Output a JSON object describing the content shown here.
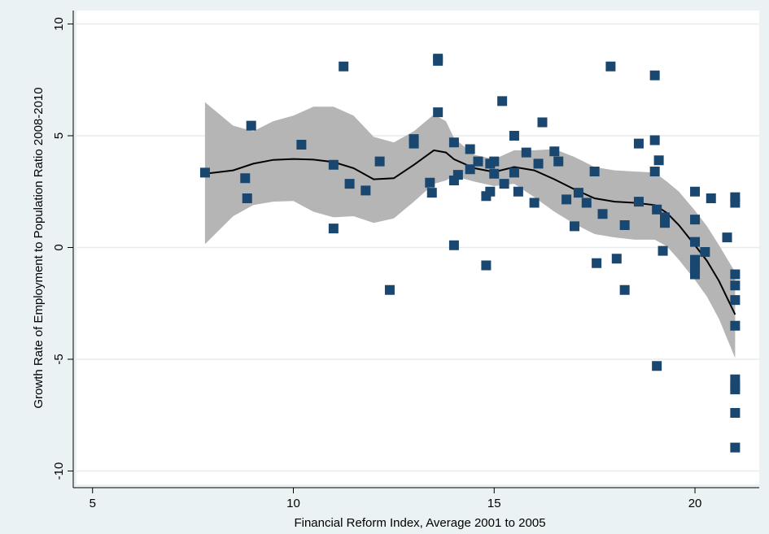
{
  "chart_data": {
    "type": "scatter",
    "title": "",
    "xlabel": "Financial Reform Index, Average 2001 to 2005",
    "ylabel": "Growth Rate of Employment to Population Ratio 2008-2010",
    "xlim": [
      4.6,
      21.6
    ],
    "ylim": [
      -10.6,
      10.6
    ],
    "xticks": [
      5,
      10,
      15,
      20
    ],
    "yticks": [
      -10,
      -5,
      0,
      5,
      10
    ],
    "grid": true,
    "legend": "none",
    "colors": {
      "background": "#eaf2f3",
      "plot_area": "#ffffff",
      "marker": "#1a476f",
      "band": "#b5b5b5",
      "line": "#000000"
    },
    "points": [
      [
        7.8,
        3.35
      ],
      [
        8.8,
        3.1
      ],
      [
        8.85,
        2.2
      ],
      [
        8.95,
        5.45
      ],
      [
        10.2,
        4.6
      ],
      [
        11.0,
        3.7
      ],
      [
        11.0,
        0.85
      ],
      [
        11.25,
        8.1
      ],
      [
        11.4,
        2.85
      ],
      [
        11.8,
        2.55
      ],
      [
        12.15,
        3.85
      ],
      [
        12.4,
        -1.9
      ],
      [
        13.0,
        4.85
      ],
      [
        13.0,
        4.65
      ],
      [
        13.4,
        2.9
      ],
      [
        13.45,
        2.45
      ],
      [
        13.6,
        8.45
      ],
      [
        13.6,
        8.35
      ],
      [
        13.6,
        6.05
      ],
      [
        14.0,
        4.7
      ],
      [
        14.0,
        3.0
      ],
      [
        14.0,
        0.1
      ],
      [
        14.1,
        3.25
      ],
      [
        14.4,
        4.4
      ],
      [
        14.4,
        3.5
      ],
      [
        14.6,
        3.85
      ],
      [
        14.8,
        2.3
      ],
      [
        14.8,
        -0.8
      ],
      [
        14.9,
        3.75
      ],
      [
        14.9,
        2.5
      ],
      [
        15.0,
        3.85
      ],
      [
        15.0,
        3.3
      ],
      [
        15.2,
        6.55
      ],
      [
        15.25,
        2.85
      ],
      [
        15.5,
        5.0
      ],
      [
        15.5,
        3.35
      ],
      [
        15.6,
        2.5
      ],
      [
        15.8,
        4.25
      ],
      [
        16.0,
        2.0
      ],
      [
        16.1,
        3.75
      ],
      [
        16.2,
        5.6
      ],
      [
        16.5,
        4.3
      ],
      [
        16.6,
        3.85
      ],
      [
        16.8,
        2.15
      ],
      [
        17.0,
        0.95
      ],
      [
        17.1,
        2.45
      ],
      [
        17.3,
        2.0
      ],
      [
        17.5,
        3.4
      ],
      [
        17.55,
        -0.7
      ],
      [
        17.7,
        1.5
      ],
      [
        17.9,
        8.1
      ],
      [
        18.05,
        -0.5
      ],
      [
        18.25,
        1.0
      ],
      [
        18.25,
        -1.9
      ],
      [
        18.6,
        4.65
      ],
      [
        18.6,
        2.05
      ],
      [
        19.0,
        7.7
      ],
      [
        19.0,
        4.8
      ],
      [
        19.0,
        3.4
      ],
      [
        19.05,
        1.7
      ],
      [
        19.05,
        -5.3
      ],
      [
        19.1,
        3.9
      ],
      [
        19.2,
        -0.15
      ],
      [
        19.25,
        1.35
      ],
      [
        19.25,
        1.1
      ],
      [
        20.0,
        2.5
      ],
      [
        20.0,
        1.25
      ],
      [
        20.0,
        0.25
      ],
      [
        20.0,
        -0.55
      ],
      [
        20.0,
        -0.8
      ],
      [
        20.0,
        -1.0
      ],
      [
        20.0,
        -1.2
      ],
      [
        20.25,
        -0.2
      ],
      [
        20.4,
        2.2
      ],
      [
        20.8,
        0.45
      ],
      [
        21.0,
        2.25
      ],
      [
        21.0,
        2.0
      ],
      [
        21.0,
        -1.2
      ],
      [
        21.0,
        -1.7
      ],
      [
        21.0,
        -2.35
      ],
      [
        21.0,
        -3.5
      ],
      [
        21.0,
        -5.9
      ],
      [
        21.0,
        -6.2
      ],
      [
        21.0,
        -6.35
      ],
      [
        21.0,
        -7.4
      ],
      [
        21.0,
        -8.95
      ]
    ],
    "fit": {
      "x": [
        7.8,
        8.5,
        9.0,
        9.5,
        10.0,
        10.5,
        11.0,
        11.5,
        12.0,
        12.5,
        13.0,
        13.5,
        13.8,
        14.0,
        14.5,
        15.0,
        15.5,
        16.0,
        16.5,
        17.0,
        17.5,
        18.0,
        18.5,
        19.0,
        19.3,
        19.6,
        20.0,
        20.3,
        20.6,
        21.0
      ],
      "y": [
        3.3,
        3.45,
        3.75,
        3.92,
        3.96,
        3.93,
        3.82,
        3.55,
        3.05,
        3.1,
        3.7,
        4.35,
        4.25,
        3.95,
        3.55,
        3.38,
        3.6,
        3.45,
        3.05,
        2.6,
        2.2,
        2.05,
        2.0,
        1.9,
        1.55,
        1.0,
        0.1,
        -0.6,
        -1.5,
        -3.0
      ],
      "lower": [
        0.15,
        1.4,
        1.9,
        2.05,
        2.08,
        1.6,
        1.35,
        1.4,
        1.1,
        1.3,
        2.05,
        2.85,
        3.0,
        3.2,
        2.95,
        2.75,
        2.85,
        2.25,
        1.6,
        1.05,
        0.6,
        0.45,
        0.35,
        0.35,
        0.05,
        -0.55,
        -1.45,
        -2.2,
        -3.2,
        -4.95
      ],
      "upper": [
        6.5,
        5.45,
        5.2,
        5.65,
        5.9,
        6.3,
        6.3,
        5.9,
        4.95,
        4.7,
        5.2,
        5.95,
        5.65,
        4.9,
        4.15,
        3.95,
        4.35,
        4.35,
        4.4,
        4.05,
        3.6,
        3.45,
        3.4,
        3.35,
        2.95,
        2.5,
        1.65,
        0.95,
        0.1,
        -1.1
      ]
    }
  }
}
